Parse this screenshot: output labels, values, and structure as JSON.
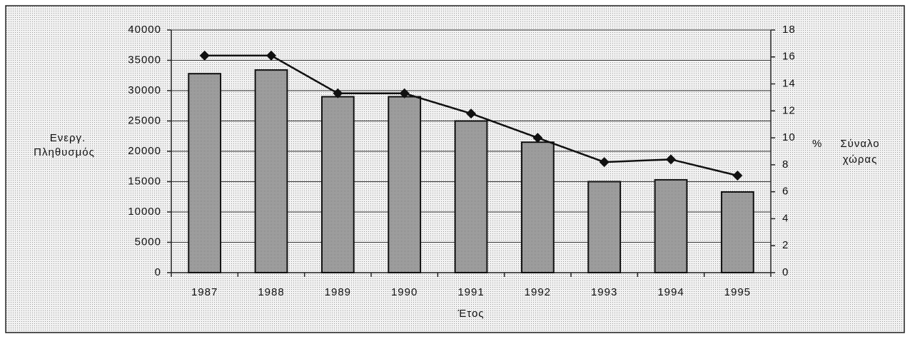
{
  "chart_data": {
    "type": "bar_line",
    "categories": [
      "1987",
      "1988",
      "1989",
      "1990",
      "1991",
      "1992",
      "1993",
      "1994",
      "1995"
    ],
    "series": [
      {
        "type": "bar",
        "color": "#9a9a9a",
        "values": [
          32800,
          33400,
          29000,
          29000,
          25000,
          21500,
          15000,
          15300,
          13300
        ]
      },
      {
        "type": "line",
        "axis": "y2",
        "color": "#111111",
        "values": [
          16.1,
          16.1,
          13.3,
          13.3,
          11.8,
          10.0,
          8.2,
          8.4,
          7.2
        ]
      }
    ],
    "y_label": [
      "Ενεργ.",
      "Πληθυσμός"
    ],
    "y2_label": [
      "%",
      "Σύναλο",
      "χώρας"
    ],
    "x_label": "Έτος",
    "ylim": [
      0,
      40000
    ],
    "yticks": [
      0,
      5000,
      10000,
      15000,
      20000,
      25000,
      30000,
      35000,
      40000
    ],
    "y2lim": [
      0,
      18
    ],
    "y2ticks": [
      0,
      2,
      4,
      6,
      8,
      10,
      12,
      14,
      16,
      18
    ],
    "grid": true
  }
}
